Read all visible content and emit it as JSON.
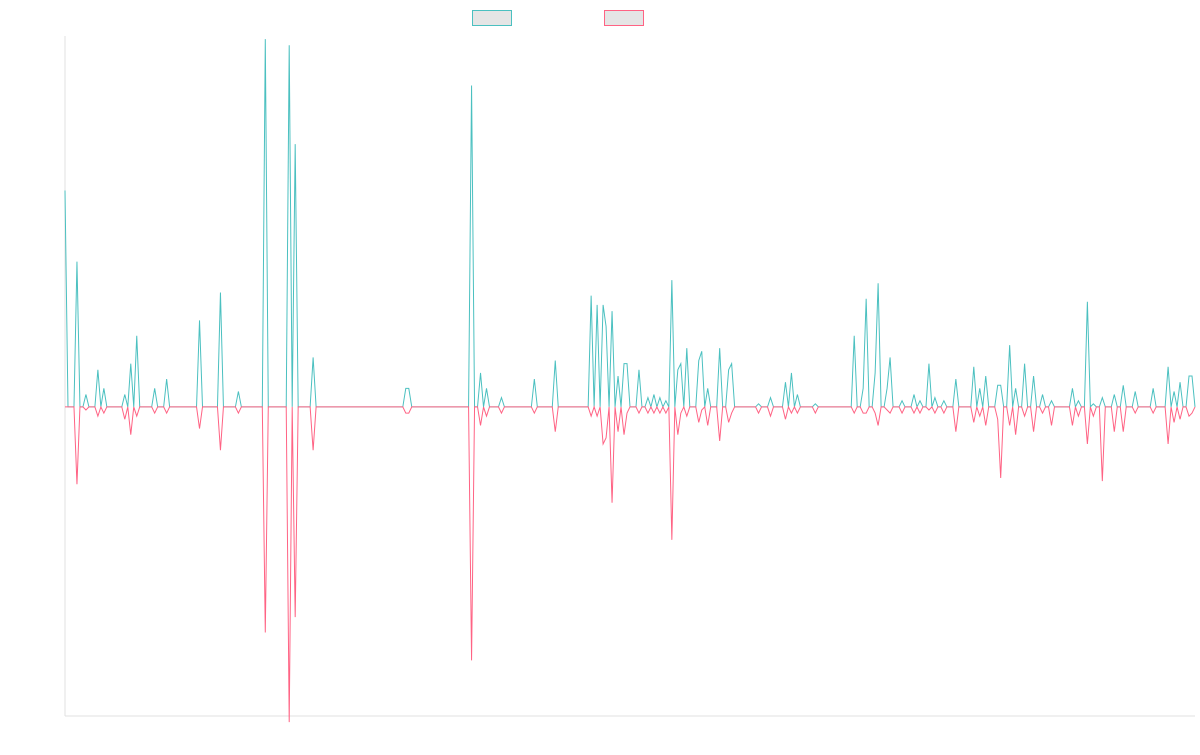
{
  "chart_data": {
    "type": "line",
    "title": "",
    "xlabel": "",
    "ylabel": "",
    "grid": false,
    "legend": "top-center",
    "ylim": [
      -100,
      120
    ],
    "x": [
      0,
      378
    ],
    "series": [
      {
        "color": "#4bc0c0",
        "spikes": [
          [
            0,
            70
          ],
          [
            4,
            47
          ],
          [
            7,
            4
          ],
          [
            11,
            12
          ],
          [
            13,
            6
          ],
          [
            20,
            4
          ],
          [
            22,
            14
          ],
          [
            24,
            23
          ],
          [
            30,
            6
          ],
          [
            34,
            9
          ],
          [
            45,
            28
          ],
          [
            52,
            37
          ],
          [
            58,
            5
          ],
          [
            67,
            119
          ],
          [
            75,
            117
          ],
          [
            77,
            85
          ],
          [
            83,
            16
          ],
          [
            114,
            6
          ],
          [
            115,
            6
          ],
          [
            136,
            104
          ],
          [
            139,
            11
          ],
          [
            141,
            6
          ],
          [
            146,
            3
          ],
          [
            157,
            9
          ],
          [
            164,
            15
          ],
          [
            176,
            36
          ],
          [
            178,
            33
          ],
          [
            180,
            33
          ],
          [
            181,
            26
          ],
          [
            183,
            31
          ],
          [
            185,
            10
          ],
          [
            187,
            14
          ],
          [
            188,
            14
          ],
          [
            192,
            12
          ],
          [
            195,
            3
          ],
          [
            197,
            4
          ],
          [
            199,
            3
          ],
          [
            201,
            2
          ],
          [
            203,
            41
          ],
          [
            205,
            12
          ],
          [
            206,
            14
          ],
          [
            208,
            19
          ],
          [
            212,
            15
          ],
          [
            213,
            18
          ],
          [
            215,
            6
          ],
          [
            219,
            19
          ],
          [
            222,
            12
          ],
          [
            223,
            14
          ],
          [
            232,
            1
          ],
          [
            236,
            3
          ],
          [
            241,
            8
          ],
          [
            243,
            11
          ],
          [
            245,
            4
          ],
          [
            251,
            1
          ],
          [
            264,
            23
          ],
          [
            267,
            6
          ],
          [
            268,
            35
          ],
          [
            271,
            11
          ],
          [
            272,
            40
          ],
          [
            275,
            6
          ],
          [
            276,
            16
          ],
          [
            280,
            2
          ],
          [
            284,
            4
          ],
          [
            286,
            2
          ],
          [
            289,
            14
          ],
          [
            291,
            3
          ],
          [
            294,
            2
          ],
          [
            298,
            9
          ],
          [
            304,
            13
          ],
          [
            306,
            6
          ],
          [
            308,
            10
          ],
          [
            312,
            7
          ],
          [
            313,
            7
          ],
          [
            316,
            20
          ],
          [
            318,
            6
          ],
          [
            321,
            14
          ],
          [
            324,
            10
          ],
          [
            327,
            4
          ],
          [
            330,
            2
          ],
          [
            337,
            6
          ],
          [
            339,
            2
          ],
          [
            342,
            34
          ],
          [
            344,
            1
          ],
          [
            347,
            3
          ],
          [
            351,
            4
          ],
          [
            354,
            7
          ],
          [
            358,
            5
          ],
          [
            364,
            6
          ],
          [
            369,
            13
          ],
          [
            371,
            5
          ],
          [
            373,
            8
          ],
          [
            376,
            10
          ],
          [
            377,
            10
          ]
        ]
      },
      {
        "color": "#ff6384",
        "spikes": [
          [
            0,
            0
          ],
          [
            4,
            -25
          ],
          [
            7,
            -1
          ],
          [
            11,
            -3
          ],
          [
            13,
            -2
          ],
          [
            20,
            -4
          ],
          [
            22,
            -9
          ],
          [
            24,
            -3
          ],
          [
            30,
            -2
          ],
          [
            34,
            -2
          ],
          [
            45,
            -7
          ],
          [
            52,
            -14
          ],
          [
            58,
            -2
          ],
          [
            67,
            -73
          ],
          [
            75,
            -102
          ],
          [
            77,
            -68
          ],
          [
            83,
            -14
          ],
          [
            114,
            -2
          ],
          [
            115,
            -2
          ],
          [
            136,
            -82
          ],
          [
            139,
            -6
          ],
          [
            141,
            -3
          ],
          [
            146,
            -2
          ],
          [
            157,
            -2
          ],
          [
            164,
            -8
          ],
          [
            176,
            -3
          ],
          [
            178,
            -3
          ],
          [
            180,
            -12
          ],
          [
            181,
            -10
          ],
          [
            183,
            -31
          ],
          [
            185,
            -8
          ],
          [
            187,
            -9
          ],
          [
            188,
            -2
          ],
          [
            192,
            -2
          ],
          [
            195,
            -2
          ],
          [
            197,
            -2
          ],
          [
            199,
            -2
          ],
          [
            201,
            -2
          ],
          [
            203,
            -43
          ],
          [
            205,
            -9
          ],
          [
            206,
            -2
          ],
          [
            208,
            -3
          ],
          [
            212,
            -5
          ],
          [
            213,
            -1
          ],
          [
            215,
            -6
          ],
          [
            219,
            -11
          ],
          [
            222,
            -5
          ],
          [
            223,
            -2
          ],
          [
            232,
            -2
          ],
          [
            236,
            -3
          ],
          [
            241,
            -4
          ],
          [
            243,
            -2
          ],
          [
            245,
            -2
          ],
          [
            251,
            -2
          ],
          [
            264,
            -2
          ],
          [
            267,
            -2
          ],
          [
            268,
            -2
          ],
          [
            271,
            -2
          ],
          [
            272,
            -6
          ],
          [
            275,
            -1
          ],
          [
            276,
            -2
          ],
          [
            280,
            -2
          ],
          [
            284,
            -2
          ],
          [
            286,
            -2
          ],
          [
            289,
            -1
          ],
          [
            291,
            -2
          ],
          [
            294,
            -2
          ],
          [
            298,
            -8
          ],
          [
            304,
            -5
          ],
          [
            306,
            -3
          ],
          [
            308,
            -6
          ],
          [
            312,
            -4
          ],
          [
            313,
            -23
          ],
          [
            316,
            -6
          ],
          [
            318,
            -9
          ],
          [
            321,
            -3
          ],
          [
            324,
            -8
          ],
          [
            327,
            -2
          ],
          [
            330,
            -6
          ],
          [
            337,
            -6
          ],
          [
            339,
            -3
          ],
          [
            342,
            -12
          ],
          [
            344,
            -3
          ],
          [
            347,
            -24
          ],
          [
            351,
            -8
          ],
          [
            354,
            -8
          ],
          [
            358,
            -2
          ],
          [
            364,
            -2
          ],
          [
            369,
            -12
          ],
          [
            371,
            -5
          ],
          [
            373,
            -4
          ],
          [
            376,
            -3
          ],
          [
            377,
            -2
          ]
        ]
      }
    ]
  }
}
